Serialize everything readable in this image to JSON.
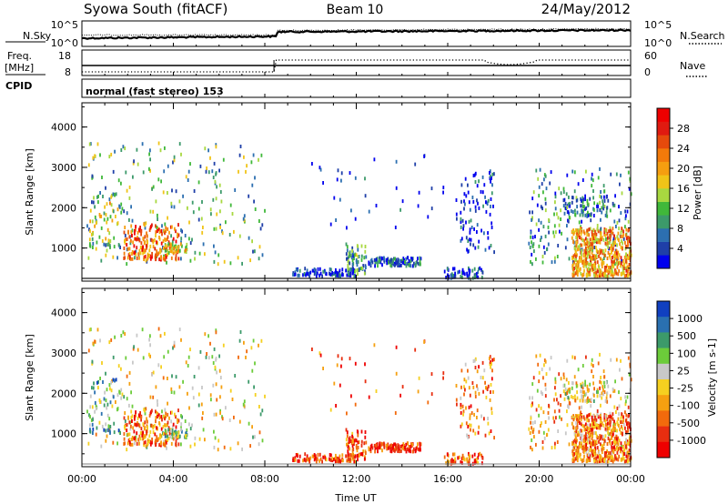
{
  "header": {
    "station": "Syowa South (fitACF)",
    "beam": "Beam 10",
    "date": "24/May/2012"
  },
  "noise_panel": {
    "left_label": "N.Sky",
    "left_ticks": [
      "10^5",
      "10^0"
    ],
    "right_ticks": [
      "10^5",
      "10^0"
    ],
    "right_label": "N.Search"
  },
  "freq_panel": {
    "left_label_1": "Freq.",
    "left_label_2": "[MHz]",
    "left_ticks": [
      "18",
      "8"
    ],
    "right_ticks": [
      "60",
      "0"
    ],
    "right_label": "Nave",
    "cpid_label": "CPID",
    "cpid_value": "normal (fast stereo) 153"
  },
  "chart_data": [
    {
      "type": "heatmap",
      "name": "power",
      "ylabel": "Slant Range [km]",
      "ylim": [
        180,
        4600
      ],
      "yticks": [
        "1000",
        "2000",
        "3000",
        "4000"
      ],
      "xlim_hours": [
        0,
        24
      ],
      "colorbar": {
        "label": "Power [dB]",
        "ticks": [
          "4",
          "8",
          "12",
          "16",
          "20",
          "24",
          "28"
        ],
        "colors": [
          "#0000ee",
          "#1f3fa8",
          "#2c6fb0",
          "#3c9a6a",
          "#40b83a",
          "#a8d840",
          "#f0c418",
          "#f59e10",
          "#f27a0a",
          "#e64a0c",
          "#e01a10",
          "#ee0000"
        ]
      }
    },
    {
      "type": "heatmap",
      "name": "velocity",
      "ylabel": "Slant Range [km]",
      "ylim": [
        180,
        4600
      ],
      "yticks": [
        "1000",
        "2000",
        "3000",
        "4000"
      ],
      "xlim_hours": [
        0,
        24
      ],
      "xticks": [
        "00:00",
        "04:00",
        "08:00",
        "12:00",
        "16:00",
        "20:00",
        "00:00"
      ],
      "xlabel": "Time UT",
      "colorbar": {
        "label": "Velocity [m s-1]",
        "ticks": [
          "1000",
          "500",
          "100",
          "25",
          "-25",
          "-100",
          "-500",
          "-1000"
        ],
        "colors": [
          "#1040c0",
          "#2a70b0",
          "#3c9a6a",
          "#6ccc3a",
          "#c8c8c8",
          "#f5d020",
          "#f5a010",
          "#f26a0c",
          "#e82e10",
          "#ee0000"
        ]
      }
    }
  ]
}
